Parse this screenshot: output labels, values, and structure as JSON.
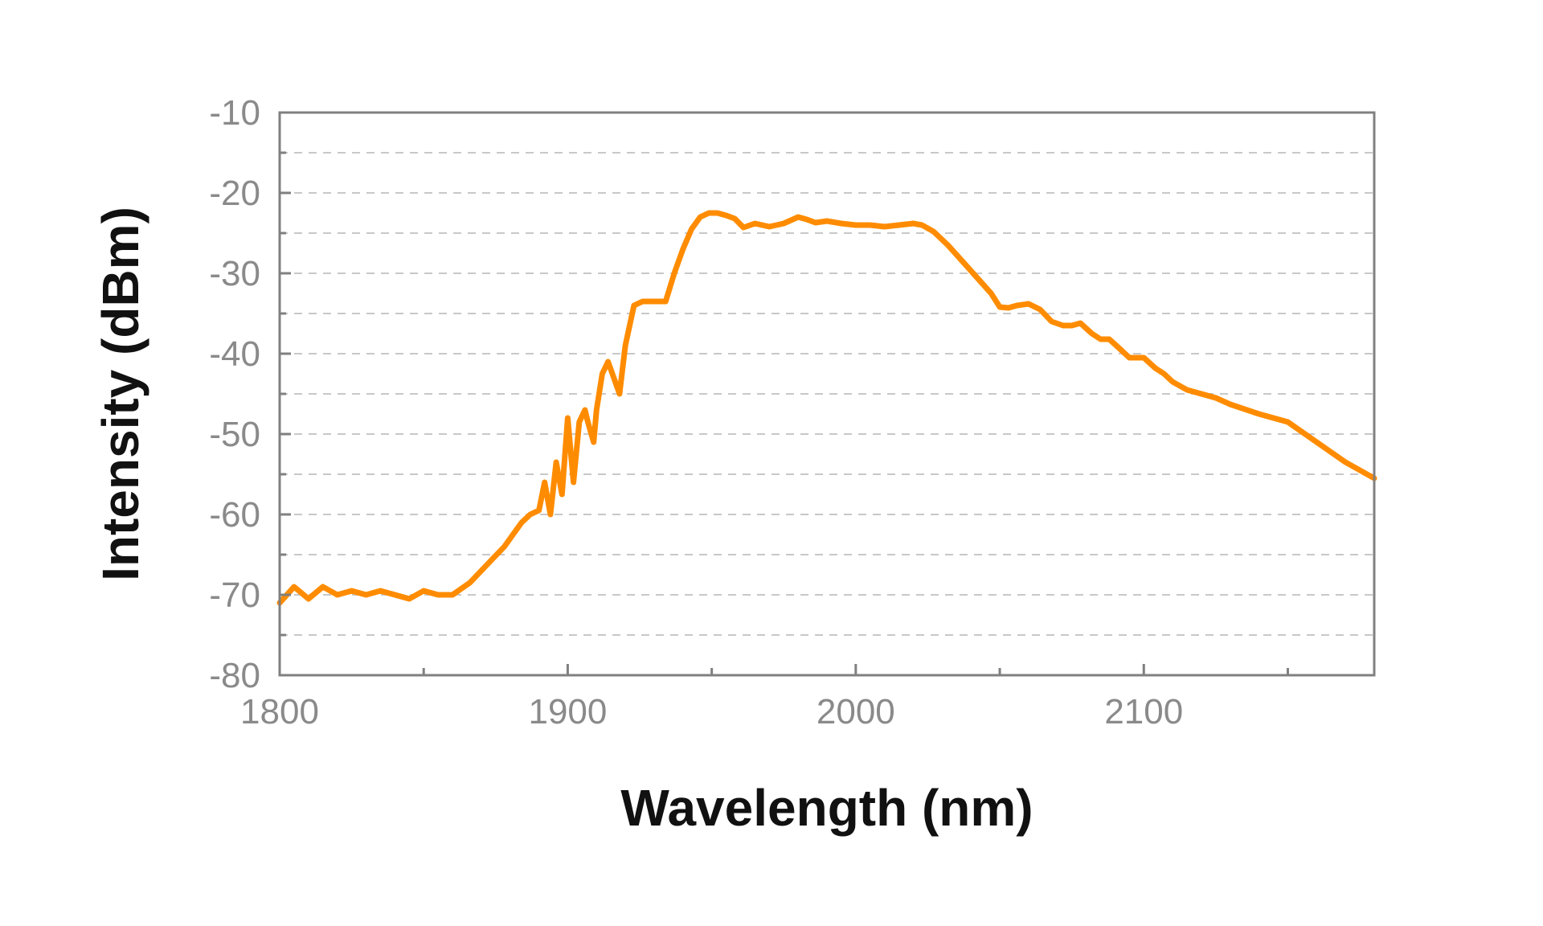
{
  "chart_data": {
    "type": "line",
    "title": "",
    "xlabel": "Wavelength (nm)",
    "ylabel": "Intensity (dBm)",
    "xlim": [
      1800,
      2180
    ],
    "ylim": [
      -80,
      -10
    ],
    "x_ticks": [
      1800,
      1900,
      2000,
      2100
    ],
    "x_minor_ticks": [
      1850,
      1950,
      2050,
      2150
    ],
    "y_ticks": [
      -80,
      -70,
      -60,
      -50,
      -40,
      -30,
      -20,
      -10
    ],
    "x_tick_labels": [
      "1800",
      "1900",
      "2000",
      "2100"
    ],
    "y_tick_labels": [
      "-80",
      "-70",
      "-60",
      "-50",
      "-40",
      "-30",
      "-20",
      "-10"
    ],
    "grid": "horizontal dashed, every 5 dBm",
    "legend": "none",
    "colors": {
      "series": "#ff8c00",
      "frame": "#808080",
      "grid": "#c8c8c8",
      "tick_text": "#8a8a8a",
      "title_text": "#111111"
    },
    "series": [
      {
        "x": [
          1800,
          1805,
          1810,
          1815,
          1820,
          1825,
          1830,
          1835,
          1840,
          1845,
          1850,
          1855,
          1860,
          1862,
          1866,
          1870,
          1874,
          1878,
          1881,
          1884,
          1887,
          1890,
          1892,
          1894,
          1896,
          1898,
          1900,
          1902,
          1904,
          1906,
          1907,
          1909,
          1910,
          1912,
          1914,
          1916,
          1918,
          1920,
          1923,
          1926,
          1930,
          1934,
          1937,
          1940,
          1943,
          1946,
          1949,
          1952,
          1955,
          1958,
          1961,
          1965,
          1970,
          1975,
          1980,
          1983,
          1986,
          1990,
          1995,
          2000,
          2005,
          2010,
          2015,
          2020,
          2023,
          2027,
          2032,
          2037,
          2042,
          2047,
          2050,
          2053,
          2056,
          2060,
          2064,
          2068,
          2072,
          2075,
          2078,
          2082,
          2085,
          2088,
          2092,
          2095,
          2100,
          2104,
          2107,
          2110,
          2115,
          2120,
          2125,
          2130,
          2140,
          2150,
          2160,
          2170,
          2180
        ],
        "y": [
          -71,
          -69,
          -70.5,
          -69,
          -70,
          -69.5,
          -70,
          -69.5,
          -70,
          -70.5,
          -69.5,
          -70,
          -70,
          -69.5,
          -68.5,
          -67,
          -65.5,
          -64,
          -62.5,
          -61,
          -60,
          -59.5,
          -56,
          -60,
          -53.5,
          -57.5,
          -48,
          -56,
          -48.5,
          -47,
          -48.5,
          -51,
          -47,
          -42.5,
          -41,
          -43,
          -45,
          -39,
          -34,
          -33.5,
          -33.5,
          -33.5,
          -30,
          -27,
          -24.5,
          -23,
          -22.5,
          -22.5,
          -22.8,
          -23.2,
          -24.3,
          -23.8,
          -24.2,
          -23.8,
          -23,
          -23.3,
          -23.7,
          -23.5,
          -23.8,
          -24,
          -24,
          -24.2,
          -24,
          -23.8,
          -24,
          -24.8,
          -26.5,
          -28.5,
          -30.5,
          -32.5,
          -34.2,
          -34.3,
          -34,
          -33.8,
          -34.5,
          -36,
          -36.5,
          -36.5,
          -36.2,
          -37.5,
          -38.2,
          -38.2,
          -39.5,
          -40.5,
          -40.5,
          -41.8,
          -42.5,
          -43.5,
          -44.5,
          -45,
          -45.5,
          -46.3,
          -47.5,
          -48.5,
          -51,
          -53.5,
          -55.5
        ]
      }
    ]
  }
}
